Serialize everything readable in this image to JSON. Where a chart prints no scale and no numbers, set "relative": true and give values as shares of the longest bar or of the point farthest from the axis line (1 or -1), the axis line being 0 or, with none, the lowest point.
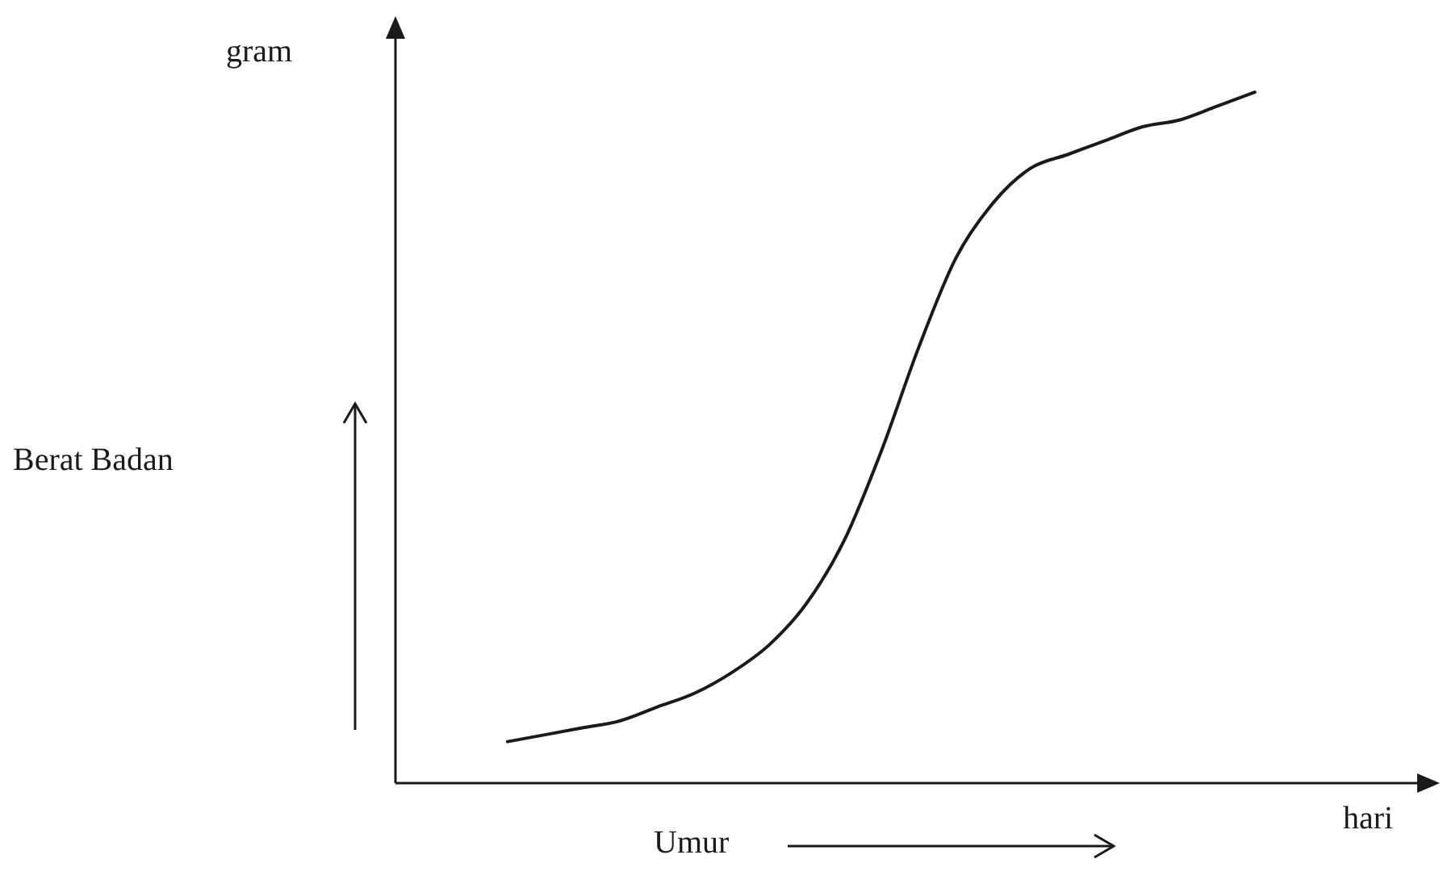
{
  "chart_data": {
    "type": "line",
    "relative": true,
    "xlabel": "Umur",
    "annotations": [
      "gram",
      "hari",
      "Berat Badan"
    ],
    "categories": [
      null,
      null,
      null,
      null,
      null,
      null,
      null,
      null,
      null,
      null,
      null,
      null,
      null,
      null,
      null,
      null,
      null,
      null,
      null,
      null,
      null,
      null,
      null,
      null,
      null,
      null,
      null,
      null
    ],
    "series": [
      {
        "color": "#1a1a1a",
        "values": [
          null,
          null,
          null,
          0.06,
          0.07,
          0.08,
          0.09,
          0.11,
          0.13,
          0.16,
          0.2,
          0.26,
          0.35,
          0.48,
          0.63,
          0.76,
          0.84,
          0.89,
          0.91,
          0.93,
          0.95,
          0.96,
          0.98,
          1.0,
          null,
          null,
          null,
          null
        ]
      }
    ],
    "legend": false,
    "marker": "none",
    "line_style": "solid"
  }
}
